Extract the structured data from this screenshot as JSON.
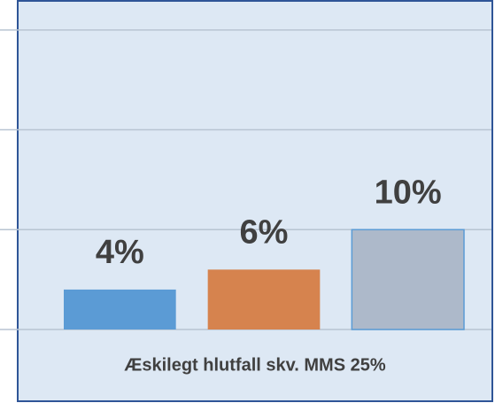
{
  "chart_data": {
    "type": "bar",
    "categories": [
      "Æskilegt hlutfall skv. MMS 25%"
    ],
    "series": [
      {
        "color": "#5b9bd5",
        "values": [
          4
        ],
        "value_labels": [
          "4%"
        ]
      },
      {
        "color": "#d6834e",
        "values": [
          6
        ],
        "value_labels": [
          "6%"
        ]
      },
      {
        "color": "#adb9ca",
        "values": [
          10
        ],
        "value_labels": [
          "10%"
        ]
      }
    ],
    "ylim": [
      0,
      33
    ],
    "yticks": [
      0,
      10,
      20,
      30
    ],
    "grid": true
  }
}
